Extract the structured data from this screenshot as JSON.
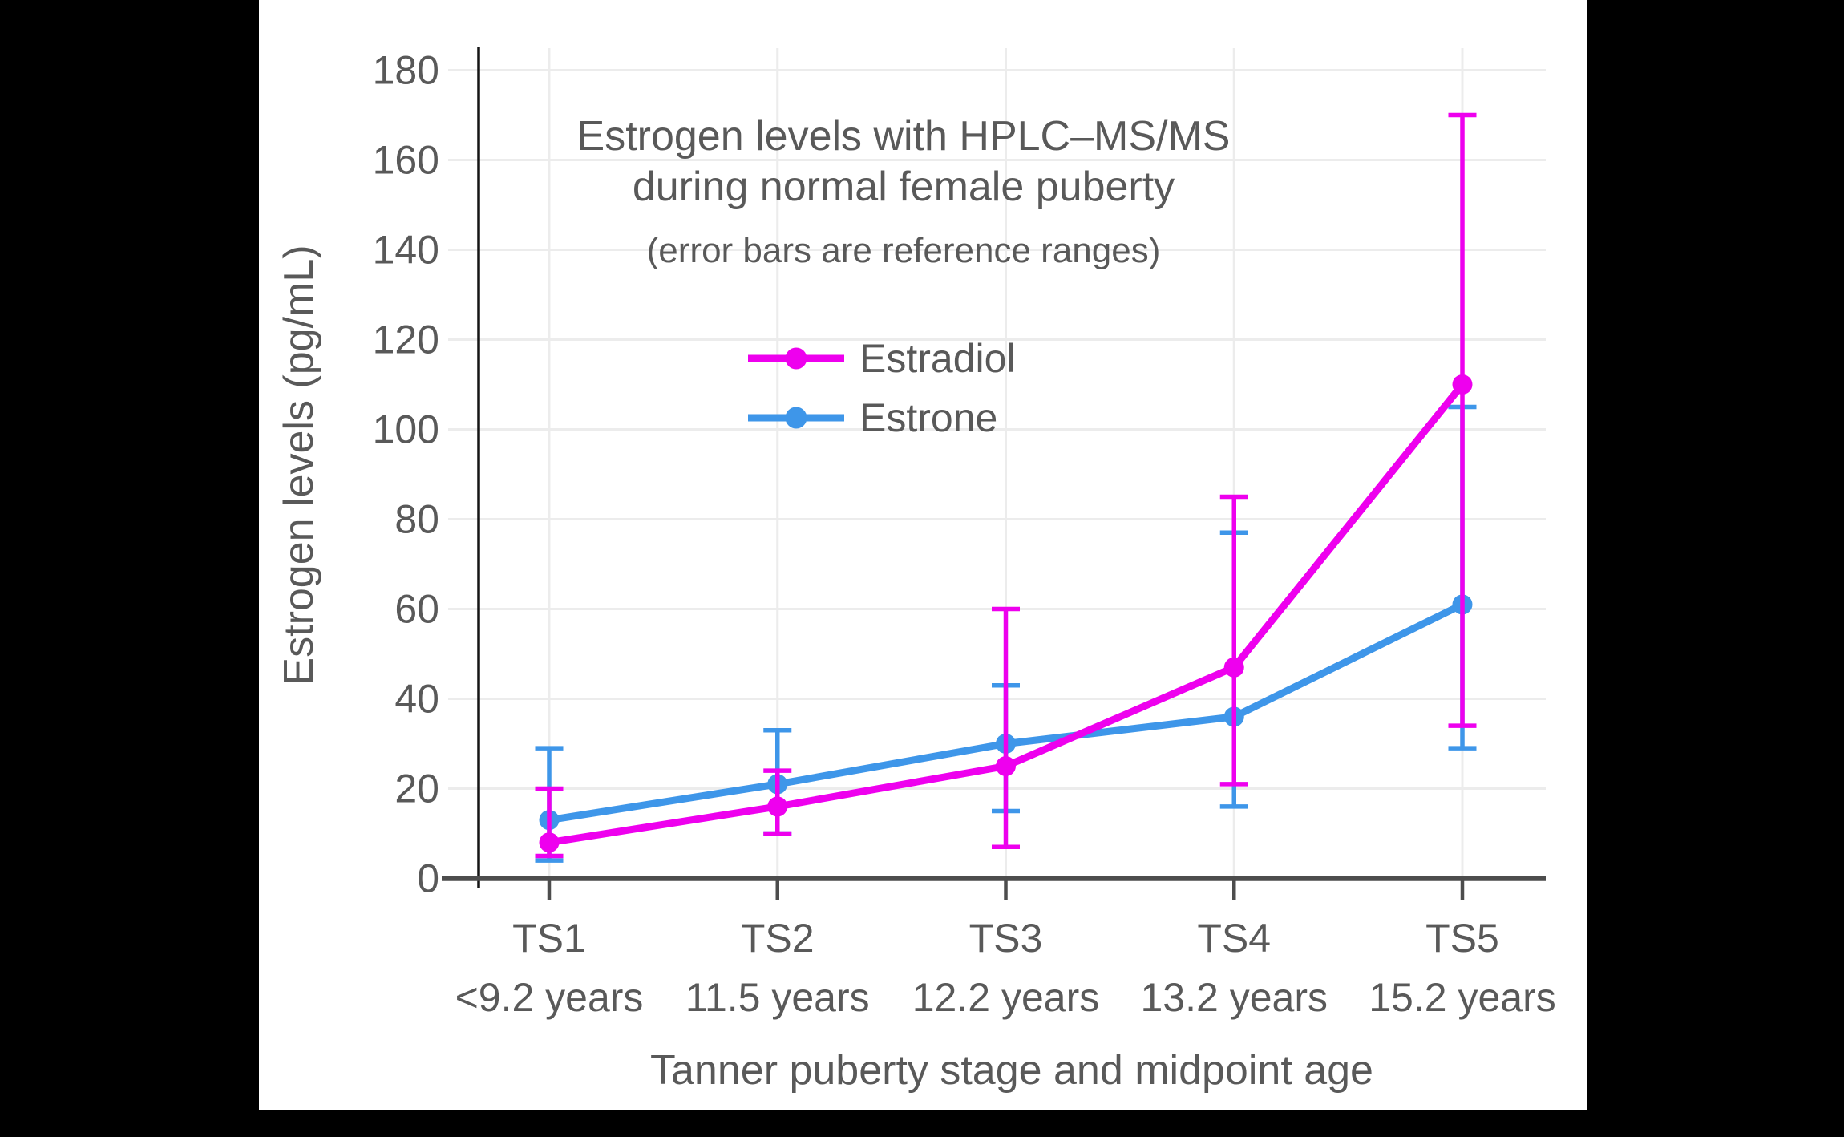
{
  "figure": {
    "title_line1": "Estrogen levels with HPLC–MS/MS",
    "title_line2": "during normal female puberty",
    "subtitle": "(error bars are reference ranges)",
    "x_axis_title": "Tanner puberty stage and midpoint age",
    "y_axis_title": "Estrogen levels (pg/mL)"
  },
  "legend": {
    "items": [
      {
        "label": "Estradiol",
        "color": "#EE00EE"
      },
      {
        "label": "Estrone",
        "color": "#3E96E9"
      }
    ]
  },
  "chart_data": {
    "type": "line",
    "title": "Estrogen levels with HPLC–MS/MS during normal female puberty",
    "subtitle": "(error bars are reference ranges)",
    "xlabel": "Tanner puberty stage and midpoint age",
    "ylabel": "Estrogen levels (pg/mL)",
    "categories": [
      "TS1",
      "TS2",
      "TS3",
      "TS4",
      "TS5"
    ],
    "category_sublabels": [
      "<9.2 years",
      "11.5 years",
      "12.2 years",
      "13.2 years",
      "15.2 years"
    ],
    "ylim": [
      0,
      180
    ],
    "ytick_step": 20,
    "grid": true,
    "legend_position": "inside-upper-center",
    "error_bar_meaning": "reference ranges",
    "series": [
      {
        "name": "Estrone",
        "color": "#3E96E9",
        "values": [
          13,
          21,
          30,
          36,
          61
        ],
        "range_low": [
          4,
          10,
          15,
          16,
          29
        ],
        "range_high": [
          29,
          33,
          43,
          77,
          105
        ]
      },
      {
        "name": "Estradiol",
        "color": "#EE00EE",
        "values": [
          8,
          16,
          25,
          47,
          110
        ],
        "range_low": [
          5,
          10,
          7,
          21,
          34
        ],
        "range_high": [
          20,
          24,
          60,
          85,
          170
        ]
      }
    ]
  }
}
